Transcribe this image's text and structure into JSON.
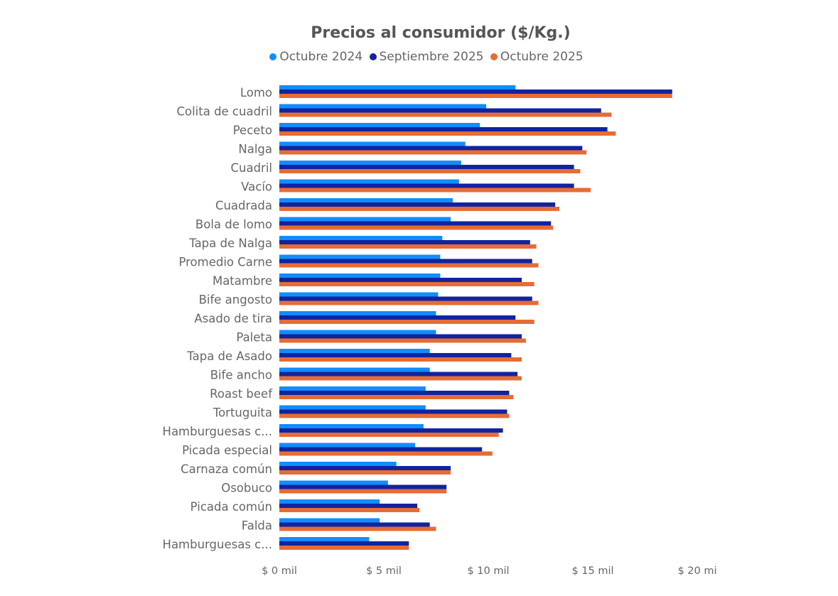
{
  "chart_data": {
    "type": "bar",
    "orientation": "horizontal",
    "title": "Precios al consumidor ($/Kg.)",
    "xlabel": "",
    "ylabel": "",
    "xlim": [
      0,
      20000
    ],
    "x_ticks": [
      0,
      5000,
      10000,
      15000,
      20000
    ],
    "x_tick_labels": [
      "$ 0 mil",
      "$ 5 mil",
      "$ 10 mil",
      "$ 15 mil",
      "$ 20 mi"
    ],
    "legend_position": "top-center",
    "grid": false,
    "categories": [
      "Lomo",
      "Colita de cuadril",
      "Peceto",
      "Nalga",
      "Cuadril",
      "Vacío",
      "Cuadrada",
      "Bola de lomo",
      "Tapa de Nalga",
      "Promedio Carne",
      "Matambre",
      "Bife angosto",
      "Asado de tira",
      "Paleta",
      "Tapa de Asado",
      "Bife ancho",
      "Roast beef",
      "Tortuguita",
      "Hamburguesas c...",
      "Picada especial",
      "Carnaza común",
      "Osobuco",
      "Picada común",
      "Falda",
      "Hamburguesas c..."
    ],
    "series": [
      {
        "name": "Octubre 2024",
        "color": "#118DFF",
        "values": [
          11300,
          9900,
          9600,
          8900,
          8700,
          8600,
          8300,
          8200,
          7800,
          7700,
          7700,
          7600,
          7500,
          7500,
          7200,
          7200,
          7000,
          7000,
          6900,
          6500,
          5600,
          5200,
          4800,
          4800,
          4300
        ]
      },
      {
        "name": "Septiembre 2025",
        "color": "#12239E",
        "values": [
          18800,
          15400,
          15700,
          14500,
          14100,
          14100,
          13200,
          13000,
          12000,
          12100,
          11600,
          12100,
          11300,
          11600,
          11100,
          11400,
          11000,
          10900,
          10700,
          9700,
          8200,
          8000,
          6600,
          7200,
          6200
        ]
      },
      {
        "name": "Octubre 2025",
        "color": "#E66C37",
        "values": [
          18800,
          15900,
          16100,
          14700,
          14400,
          14900,
          13400,
          13100,
          12300,
          12400,
          12200,
          12400,
          12200,
          11800,
          11600,
          11600,
          11200,
          11000,
          10500,
          10200,
          8200,
          8000,
          6700,
          7500,
          6200
        ]
      }
    ]
  }
}
